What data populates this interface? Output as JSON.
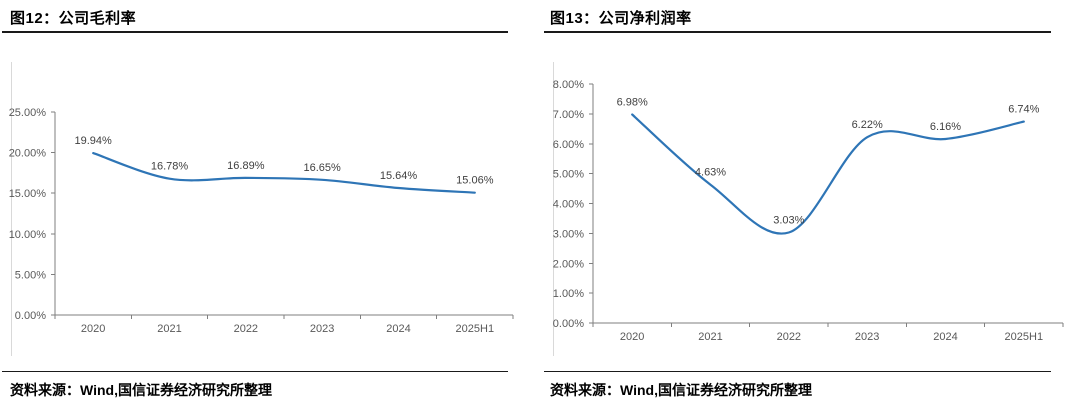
{
  "page": {
    "background": "#ffffff"
  },
  "colors": {
    "line": "#2E75B6",
    "axis": "#7f7f7f",
    "tick_text": "#595959",
    "data_label_text": "#404040",
    "rule": "#1a1a1a",
    "image_border": "#d9d9d9"
  },
  "chart_data": [
    {
      "type": "line",
      "title": "图12：公司毛利率",
      "categories": [
        "2020",
        "2021",
        "2022",
        "2023",
        "2024",
        "2025H1"
      ],
      "values": [
        19.94,
        16.78,
        16.89,
        16.65,
        15.64,
        15.06
      ],
      "point_labels": [
        "19.94%",
        "16.78%",
        "16.89%",
        "16.65%",
        "15.64%",
        "15.06%"
      ],
      "ylim": [
        0,
        25
      ],
      "ytick_labels": [
        "0.00%",
        "5.00%",
        "10.00%",
        "15.00%",
        "20.00%",
        "25.00%"
      ],
      "grid": false,
      "legend": "none",
      "smooth": true,
      "line_color": "#2E75B6",
      "source": "资料来源：Wind,国信证券经济研究所整理"
    },
    {
      "type": "line",
      "title": "图13：公司净利润率",
      "categories": [
        "2020",
        "2021",
        "2022",
        "2023",
        "2024",
        "2025H1"
      ],
      "values": [
        6.98,
        4.63,
        3.03,
        6.22,
        6.16,
        6.74
      ],
      "point_labels": [
        "6.98%",
        "4.63%",
        "3.03%",
        "6.22%",
        "6.16%",
        "6.74%"
      ],
      "ylim": [
        0,
        8
      ],
      "ytick_labels": [
        "0.00%",
        "1.00%",
        "2.00%",
        "3.00%",
        "4.00%",
        "5.00%",
        "6.00%",
        "7.00%",
        "8.00%"
      ],
      "grid": false,
      "legend": "none",
      "smooth": true,
      "line_color": "#2E75B6",
      "source": "资料来源：Wind,国信证券经济研究所整理"
    }
  ]
}
